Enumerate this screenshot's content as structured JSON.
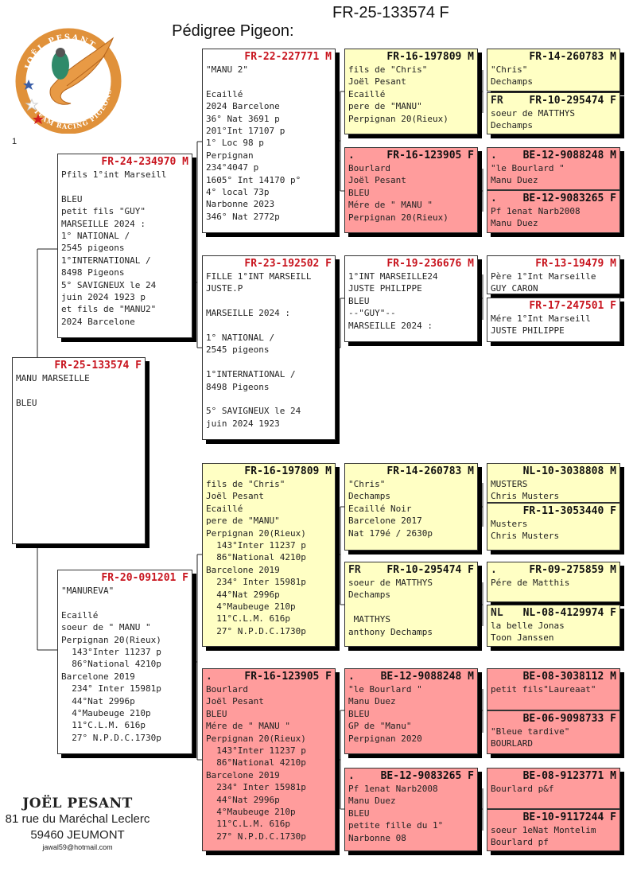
{
  "header": {
    "title": "Pédigree Pigeon:",
    "ring": "FR-25-133574 F"
  },
  "page_number": "1",
  "logo": {
    "top_text": "JOËL PESANT",
    "bottom_text": "TEAM RACING PIGEONS",
    "colors": {
      "ring": "#e0913a",
      "star1": "#3a5ea8",
      "star2": "#ffffff",
      "star3": "#d21e1e"
    }
  },
  "colors": {
    "white_box": "#ffffff",
    "yellow_box": "#ffffc4",
    "pink_box": "#ff9c9c",
    "ring_red": "#c8141e"
  },
  "pigeons": [
    {
      "ring": "FR-25-133574 F",
      "prefix": "",
      "color": "white",
      "lines": [
        "MANU MARSEILLE",
        "",
        "BLEU"
      ]
    },
    {
      "ring": "FR-24-234970 M",
      "prefix": "",
      "color": "white",
      "lines": [
        "Pfils 1°int Marseill",
        "",
        "BLEU",
        "petit fils \"GUY\"",
        "MARSEILLE 2024 :",
        "1° NATIONAL /",
        "2545 pigeons",
        "1°INTERNATIONAL /",
        "8498 Pigeons",
        "5° SAVIGNEUX le 24",
        "juin 2024 1923 p",
        "et fils de \"MANU2\"",
        "2024 Barcelone"
      ]
    },
    {
      "ring": "FR-20-091201 F",
      "prefix": "",
      "color": "white",
      "lines": [
        "\"MANUREVA\"",
        "",
        "Ecaillé",
        "soeur de \" MANU \"",
        "Perpignan 20(Rieux)",
        "  143°Inter 11237 p",
        "  86°National 4210p",
        "Barcelone 2019",
        "  234° Inter 15981p",
        "  44°Nat 2996p",
        "  4°Maubeuge 210p",
        "  11°C.L.M. 616p",
        "  27° N.P.D.C.1730p"
      ]
    },
    {
      "ring": "FR-22-227771 M",
      "prefix": "",
      "color": "white",
      "lines": [
        "\"MANU 2\"",
        "",
        "Ecaillé",
        "2024 Barcelone",
        "36° Nat 3691 p",
        "201°Int 17107 p",
        "1° Loc 98 p",
        "Perpignan",
        "234°4047 p",
        "1605° Int 14170 p°",
        "4° local 73p",
        "Narbonne 2023",
        "346° Nat 2772p"
      ]
    },
    {
      "ring": "FR-23-192502 F",
      "prefix": "",
      "color": "white",
      "lines": [
        "FILLE 1°INT MARSEILL",
        "JUSTE.P",
        "",
        "MARSEILLE 2024 :",
        "",
        "1° NATIONAL /",
        "2545 pigeons",
        "",
        "1°INTERNATIONAL /",
        "8498 Pigeons",
        "",
        "5° SAVIGNEUX le 24",
        "juin 2024 1923"
      ]
    },
    {
      "ring": "FR-16-197809 M",
      "prefix": "",
      "color": "yellow",
      "lines": [
        "fils de \"Chris\"",
        "Joël Pesant",
        "Ecaillé",
        "pere de \"MANU\"",
        "Perpignan 20(Rieux)",
        "  143°Inter 11237 p",
        "  86°National 4210p",
        "Barcelone 2019",
        "  234° Inter 15981p",
        "  44°Nat 2996p",
        "  4°Maubeuge 210p",
        "  11°C.L.M. 616p",
        "  27° N.P.D.C.1730p"
      ]
    },
    {
      "ring": "FR-16-123905 F",
      "prefix": ".",
      "color": "pink",
      "lines": [
        "Bourlard",
        "Joël Pesant",
        "BLEU",
        "Mére de \" MANU \"",
        "Perpignan 20(Rieux)",
        "  143°Inter 11237 p",
        "  86°National 4210p",
        "Barcelone 2019",
        "  234° Inter 15981p",
        "  44°Nat 2996p",
        "  4°Maubeuge 210p",
        "  11°C.L.M. 616p",
        "  27° N.P.D.C.1730p"
      ]
    },
    {
      "ring": "FR-16-197809 M",
      "prefix": "",
      "color": "yellow",
      "lines": [
        "fils de \"Chris\"",
        "Joël Pesant",
        "Ecaillé",
        "pere de \"MANU\"",
        "Perpignan 20(Rieux)"
      ]
    },
    {
      "ring": "FR-16-123905 F",
      "prefix": ".",
      "color": "pink",
      "lines": [
        "Bourlard",
        "Joël Pesant",
        "BLEU",
        "Mére de \" MANU \"",
        "Perpignan 20(Rieux)"
      ]
    },
    {
      "ring": "FR-19-236676 M",
      "prefix": "",
      "color": "white",
      "lines": [
        "1°INT MARSEILLE24",
        "JUSTE PHILIPPE",
        "BLEU",
        "--\"GUY\"--",
        "MARSEILLE 2024 :"
      ]
    },
    {
      "ring": "FR-14-260783 M",
      "prefix": "",
      "color": "yellow",
      "lines": [
        "\"Chris\"",
        "Dechamps",
        "Ecaillé Noir",
        "Barcelone 2017",
        "Nat 179é / 2630p"
      ]
    },
    {
      "ring": "FR-10-295474 F",
      "prefix": "FR",
      "color": "yellow",
      "lines": [
        "soeur de MATTHYS",
        "Dechamps",
        "",
        " MATTHYS",
        "anthony Dechamps"
      ]
    },
    {
      "ring": "BE-12-9088248 M",
      "prefix": ".",
      "color": "pink",
      "lines": [
        "\"le Bourlard \"",
        "Manu Duez",
        "BLEU",
        "GP de \"Manu\"",
        "Perpignan 2020"
      ]
    },
    {
      "ring": "BE-12-9083265 F",
      "prefix": ".",
      "color": "pink",
      "lines": [
        "Pf 1enat Narb2008",
        "Manu Duez",
        "BLEU",
        "petite fille du 1°",
        "Narbonne 08"
      ]
    },
    {
      "ring": "FR-14-260783 M",
      "prefix": "",
      "color": "yellow",
      "lines": [
        "\"Chris\"",
        "Dechamps"
      ]
    },
    {
      "ring": "FR-10-295474 F",
      "prefix": "FR",
      "color": "yellow",
      "lines": [
        "soeur de MATTHYS",
        "Dechamps"
      ]
    },
    {
      "ring": "BE-12-9088248 M",
      "prefix": ".",
      "color": "pink",
      "lines": [
        "\"le Bourlard \"",
        "Manu Duez"
      ]
    },
    {
      "ring": "BE-12-9083265 F",
      "prefix": ".",
      "color": "pink",
      "lines": [
        "Pf 1enat Narb2008",
        "Manu Duez"
      ]
    },
    {
      "ring": "FR-13-19479 M",
      "prefix": "",
      "color": "white",
      "lines": [
        "Père 1°Int Marseille",
        "GUY CARON"
      ]
    },
    {
      "ring": "FR-17-247501 F",
      "prefix": "",
      "color": "white",
      "lines": [
        "Mére 1°Int Marseill",
        "JUSTE PHILIPPE"
      ]
    },
    {
      "ring": "NL-10-3038808 M",
      "prefix": "",
      "color": "yellow",
      "lines": [
        "MUSTERS",
        "Chris Musters"
      ]
    },
    {
      "ring": "FR-11-3053440 F",
      "prefix": "",
      "color": "yellow",
      "lines": [
        "Musters",
        "Chris Musters"
      ]
    },
    {
      "ring": "FR-09-275859 M",
      "prefix": ".",
      "color": "yellow",
      "lines": [
        "Pére de Matthis"
      ]
    },
    {
      "ring": "NL-08-4129974 F",
      "prefix": "NL",
      "color": "yellow",
      "lines": [
        "la belle Jonas",
        "Toon Janssen"
      ]
    },
    {
      "ring": "BE-08-3038112 M",
      "prefix": "",
      "color": "pink",
      "lines": [
        "petit fils\"Laureaat\""
      ]
    },
    {
      "ring": "BE-06-9098733 F",
      "prefix": "",
      "color": "pink",
      "lines": [
        "\"Bleue tardive\"",
        "BOURLARD"
      ]
    },
    {
      "ring": "BE-08-9123771 M",
      "prefix": "",
      "color": "pink",
      "lines": [
        "Bourlard p&f"
      ]
    },
    {
      "ring": "BE-10-9117244 F",
      "prefix": "",
      "color": "pink",
      "lines": [
        "soeur 1eNat Montelim",
        "Bourlard pf"
      ]
    }
  ],
  "footer": {
    "name": "JOËL PESANT",
    "address": "81 rue du Maréchal Leclerc",
    "city": "59460 JEUMONT",
    "email": "jawal59@hotmail.com"
  }
}
